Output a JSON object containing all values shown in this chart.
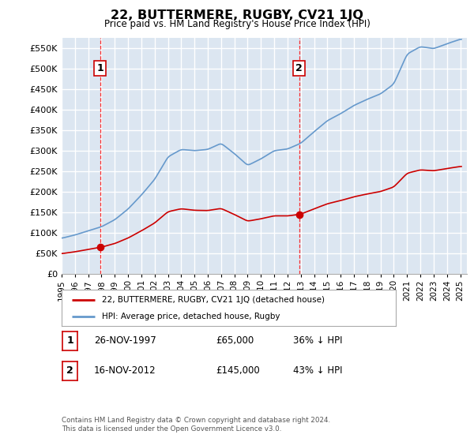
{
  "title": "22, BUTTERMERE, RUGBY, CV21 1JQ",
  "subtitle": "Price paid vs. HM Land Registry's House Price Index (HPI)",
  "ylim": [
    0,
    575000
  ],
  "yticks": [
    0,
    50000,
    100000,
    150000,
    200000,
    250000,
    300000,
    350000,
    400000,
    450000,
    500000,
    550000
  ],
  "xlim_start": 1995.0,
  "xlim_end": 2025.5,
  "bg_color": "#dce6f1",
  "grid_color": "#ffffff",
  "hpi_color": "#6699cc",
  "price_color": "#cc0000",
  "sale1_date": 1997.9,
  "sale1_price": 65000,
  "sale2_date": 2012.88,
  "sale2_price": 145000,
  "annotation1_label": "1",
  "annotation2_label": "2",
  "legend_line1": "22, BUTTERMERE, RUGBY, CV21 1JQ (detached house)",
  "legend_line2": "HPI: Average price, detached house, Rugby",
  "table_row1": [
    "1",
    "26-NOV-1997",
    "£65,000",
    "36% ↓ HPI"
  ],
  "table_row2": [
    "2",
    "16-NOV-2012",
    "£145,000",
    "43% ↓ HPI"
  ],
  "footnote": "Contains HM Land Registry data © Crown copyright and database right 2024.\nThis data is licensed under the Open Government Licence v3.0.",
  "xtick_years": [
    1995,
    1996,
    1997,
    1998,
    1999,
    2000,
    2001,
    2002,
    2003,
    2004,
    2005,
    2006,
    2007,
    2008,
    2009,
    2010,
    2011,
    2012,
    2013,
    2014,
    2015,
    2016,
    2017,
    2018,
    2019,
    2020,
    2021,
    2022,
    2023,
    2024,
    2025
  ],
  "hpi_yearly": [
    87000,
    95000,
    105000,
    115000,
    132000,
    158000,
    192000,
    230000,
    285000,
    303000,
    300000,
    303000,
    318000,
    293000,
    264000,
    280000,
    300000,
    304000,
    318000,
    346000,
    373000,
    390000,
    410000,
    425000,
    438000,
    462000,
    535000,
    553000,
    548000,
    560000,
    571000
  ]
}
